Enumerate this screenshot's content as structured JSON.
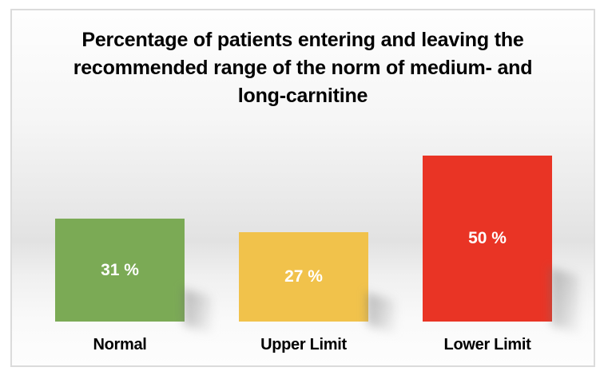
{
  "chart_data": {
    "type": "bar",
    "title": "Percentage of patients entering and leaving the recommended range of the norm of medium- and long-carnitine",
    "unit": "%",
    "categories": [
      "Normal",
      "Upper Limit",
      "Lower Limit"
    ],
    "values": [
      31,
      27,
      50
    ],
    "value_labels": [
      "31 %",
      "27 %",
      "50 %"
    ],
    "bar_colors": [
      "#7BAA55",
      "#F1C24B",
      "#E93425"
    ],
    "value_label_color": "#FFFFFF",
    "title_color": "#000000",
    "category_label_color": "#000000",
    "frame_border_color": "#DBDBDB",
    "background_gradient": [
      "#FEFEFE",
      "#E2E2E2",
      "#FDFDFD"
    ],
    "axes_visible": false,
    "gridlines": false,
    "legend": "none",
    "xlabel": "",
    "ylabel": "",
    "ylim": [
      0,
      60
    ]
  }
}
